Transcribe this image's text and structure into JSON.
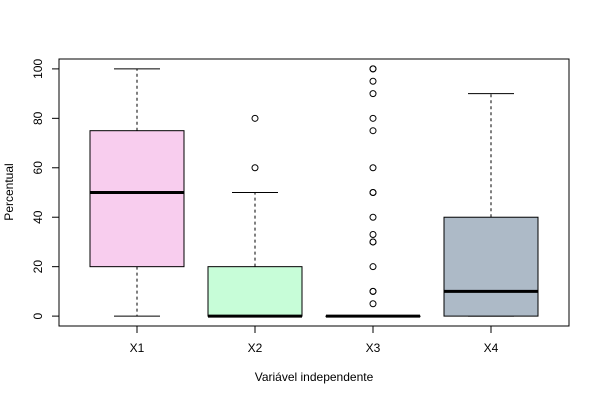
{
  "chart_data": {
    "type": "boxplot",
    "xlabel": "Variável independente",
    "ylabel": "Percentual",
    "ylim": [
      -4,
      104
    ],
    "yticks": [
      0,
      20,
      40,
      60,
      80,
      100
    ],
    "grid": false,
    "legend": "none",
    "groups": [
      {
        "label": "X1",
        "color": "#f8cdee",
        "whisker_low": 0,
        "q1": 20,
        "median": 50,
        "q3": 75,
        "whisker_high": 100,
        "outliers": []
      },
      {
        "label": "X2",
        "color": "#c7fdd8",
        "whisker_low": 0,
        "q1": 0,
        "median": 0,
        "q3": 20,
        "whisker_high": 50,
        "outliers": [
          60,
          80
        ]
      },
      {
        "label": "X3",
        "color": "#ffffff",
        "whisker_low": 0,
        "q1": 0,
        "median": 0,
        "q3": 0,
        "whisker_high": 0,
        "outliers": [
          5,
          10,
          10,
          20,
          30,
          30,
          33,
          40,
          50,
          50,
          60,
          75,
          80,
          90,
          95,
          100,
          100
        ]
      },
      {
        "label": "X4",
        "color": "#adbac7",
        "whisker_low": 0,
        "q1": 0,
        "median": 10,
        "q3": 40,
        "whisker_high": 90,
        "outliers": []
      }
    ]
  }
}
